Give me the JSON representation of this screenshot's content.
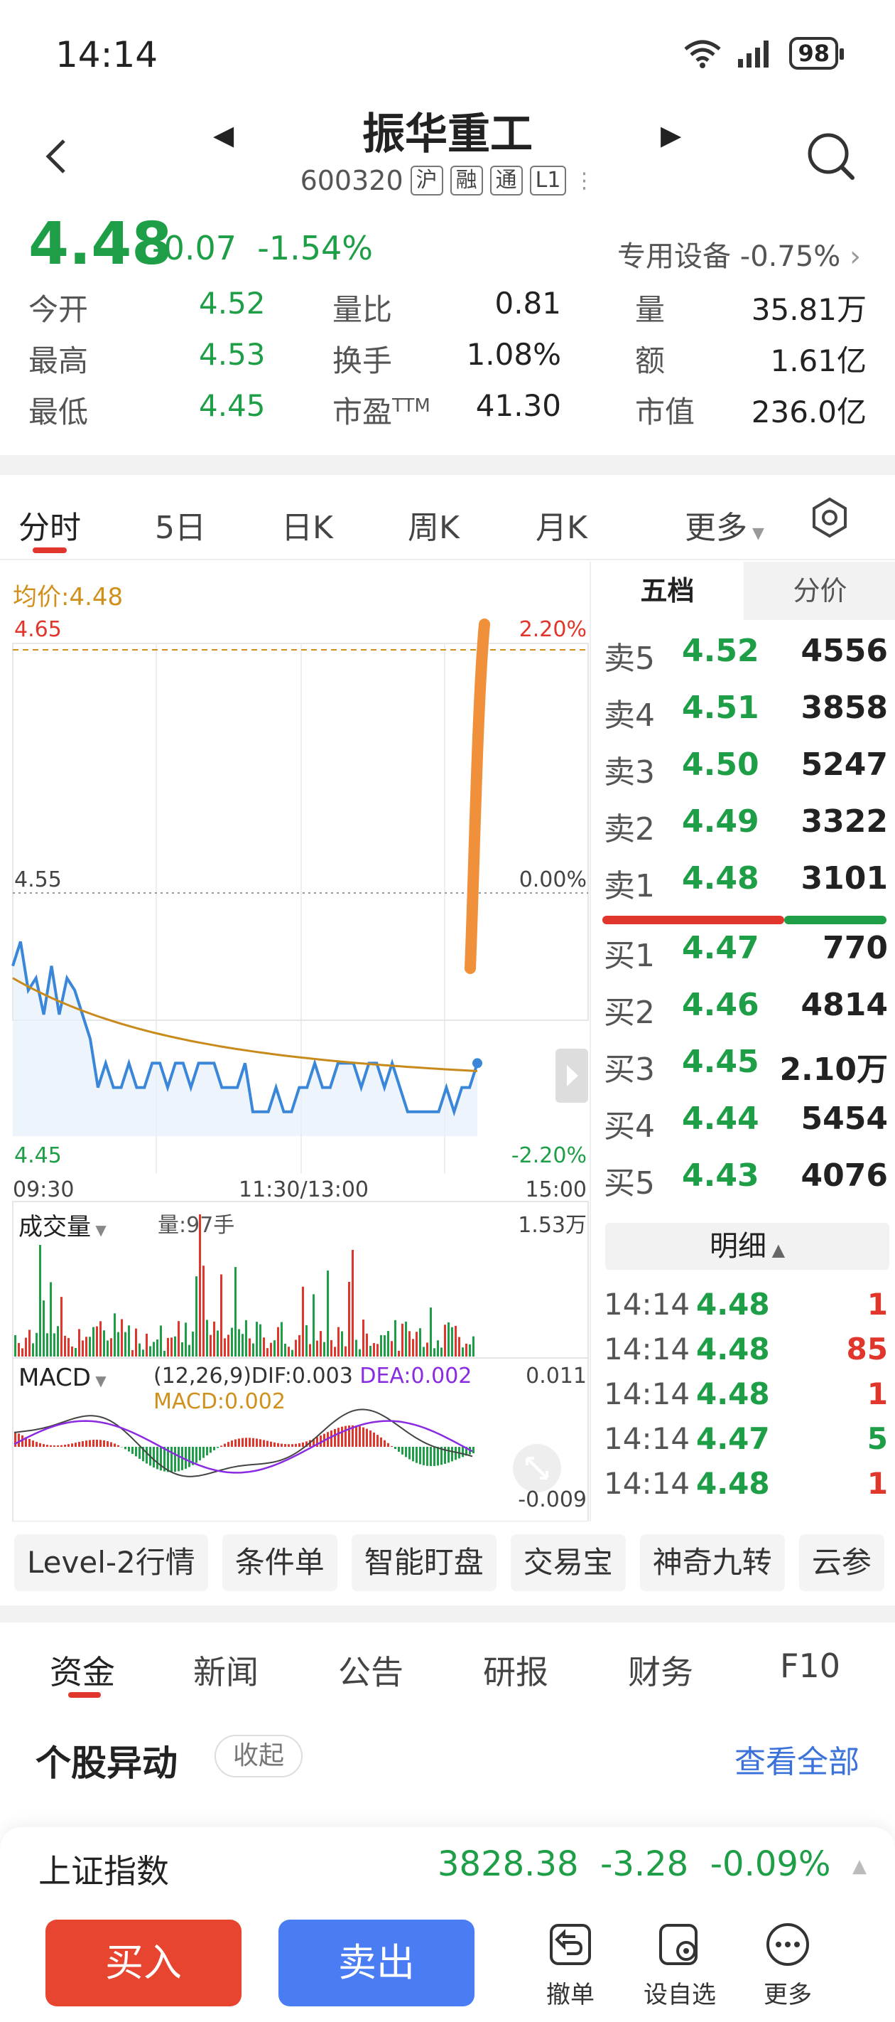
{
  "status_bar": {
    "time": "14:14",
    "battery": "98"
  },
  "header": {
    "stock_name": "振华重工",
    "code": "600320",
    "tags": [
      "沪",
      "融",
      "通",
      "L1"
    ]
  },
  "quote": {
    "price": "4.48",
    "change": "-0.07",
    "change_pct": "-1.54%",
    "sector": "专用设备",
    "sector_pct": "-0.75%",
    "rows": [
      {
        "l1": "今开",
        "v1": "4.52",
        "l2": "量比",
        "v2": "0.81",
        "l3": "量",
        "v3": "35.81万"
      },
      {
        "l1": "最高",
        "v1": "4.53",
        "l2": "换手",
        "v2": "1.08%",
        "l3": "额",
        "v3": "1.61亿"
      },
      {
        "l1": "最低",
        "v1": "4.45",
        "l2": "市盈",
        "l2_sup": "TTM",
        "v2": "41.30",
        "l3": "市值",
        "v3": "236.0亿"
      }
    ]
  },
  "period_tabs": [
    "分时",
    "5日",
    "日K",
    "周K",
    "月K",
    "更多"
  ],
  "chart": {
    "avg_label": "均价:4.48",
    "y_top": "4.65",
    "y_mid": "4.55",
    "y_bot": "4.45",
    "pct_top": "2.20%",
    "pct_mid": "0.00%",
    "pct_bot": "-2.20%",
    "x_start": "09:30",
    "x_mid": "11:30/13:00",
    "x_end": "15:00",
    "volume_label": "成交量",
    "volume_now": "量:97手",
    "volume_max": "1.53万",
    "macd_label": "MACD",
    "macd_params": "(12,26,9)",
    "dif": "DIF:0.003",
    "dea": "DEA:0.002",
    "macd_val": "MACD:0.002",
    "macd_max": "0.011",
    "macd_min": "-0.009"
  },
  "order_book": {
    "tab_active": "五档",
    "tab_other": "分价",
    "asks": [
      {
        "label": "卖5",
        "price": "4.52",
        "vol": "4556"
      },
      {
        "label": "卖4",
        "price": "4.51",
        "vol": "3858"
      },
      {
        "label": "卖3",
        "price": "4.50",
        "vol": "5247"
      },
      {
        "label": "卖2",
        "price": "4.49",
        "vol": "3322"
      },
      {
        "label": "卖1",
        "price": "4.48",
        "vol": "3101"
      }
    ],
    "bids": [
      {
        "label": "买1",
        "price": "4.47",
        "vol": "770"
      },
      {
        "label": "买2",
        "price": "4.46",
        "vol": "4814"
      },
      {
        "label": "买3",
        "price": "4.45",
        "vol": "2.10万"
      },
      {
        "label": "买4",
        "price": "4.44",
        "vol": "5454"
      },
      {
        "label": "买5",
        "price": "4.43",
        "vol": "4076"
      }
    ],
    "detail_label": "明细",
    "ticks": [
      {
        "t": "14:14",
        "p": "4.48",
        "v": "1",
        "dir": "red"
      },
      {
        "t": "14:14",
        "p": "4.48",
        "v": "85",
        "dir": "red"
      },
      {
        "t": "14:14",
        "p": "4.48",
        "v": "1",
        "dir": "red"
      },
      {
        "t": "14:14",
        "p": "4.47",
        "v": "5",
        "dir": "green"
      },
      {
        "t": "14:14",
        "p": "4.48",
        "v": "1",
        "dir": "red"
      }
    ]
  },
  "tools": [
    "Level-2行情",
    "条件单",
    "智能盯盘",
    "交易宝",
    "神奇九转",
    "云参"
  ],
  "info_tabs": [
    "资金",
    "新闻",
    "公告",
    "研报",
    "财务",
    "F10"
  ],
  "anomaly": {
    "title": "个股异动",
    "collapse": "收起",
    "view_all": "查看全部"
  },
  "index_bar": {
    "name": "上证指数",
    "value": "3828.38",
    "change": "-3.28",
    "pct": "-0.09%"
  },
  "actions": {
    "buy": "买入",
    "sell": "卖出",
    "cancel": "撤单",
    "watch": "设自选",
    "more": "更多"
  },
  "colors": {
    "up": "#e0362c",
    "down": "#1e9e46",
    "avg": "#d0901c",
    "price_line": "#3a86d8",
    "annotation": "#f0903a"
  }
}
